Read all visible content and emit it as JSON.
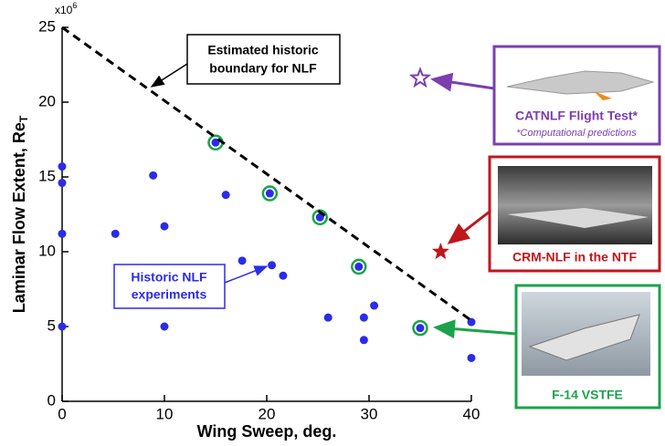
{
  "chart_data": {
    "type": "scatter",
    "xlabel": "Wing Sweep, deg.",
    "ylabel": {
      "text": "Laminar Flow Extent, Re",
      "subscript": "T"
    },
    "yscale_label": {
      "text": "x10",
      "superscript": "6"
    },
    "xlim": [
      0,
      40
    ],
    "ylim": [
      0,
      25
    ],
    "xticks": [
      0,
      10,
      20,
      30,
      40
    ],
    "yticks": [
      0,
      5,
      10,
      15,
      20,
      25
    ],
    "series": [
      {
        "marker": "dot",
        "color": "#2b2bea",
        "x": [
          0,
          0,
          0,
          0,
          5.2,
          8.9,
          10,
          10,
          16,
          17.6,
          20.5,
          21.6,
          26,
          29.5,
          29.5,
          30.5,
          40,
          40
        ],
        "values": [
          15.7,
          14.6,
          11.2,
          5,
          11.2,
          15.1,
          11.7,
          5,
          13.8,
          9.4,
          9.1,
          8.4,
          5.6,
          5.6,
          4.1,
          6.4,
          5.3,
          2.9
        ]
      },
      {
        "marker": "ringed-dot",
        "color": "#2b2bea",
        "ring_color": "#1aa34a",
        "x": [
          15,
          20.3,
          25.2,
          29,
          35
        ],
        "values": [
          17.3,
          13.9,
          12.3,
          9,
          4.9
        ]
      },
      {
        "marker": "open-star",
        "color": "#7b3fb0",
        "x": [
          35
        ],
        "values": [
          21.6
        ]
      },
      {
        "marker": "star",
        "color": "#c0161c",
        "x": [
          37
        ],
        "values": [
          10
        ]
      },
      {
        "marker": "dashed-line",
        "color": "#000000",
        "x": [
          0,
          40
        ],
        "values": [
          25,
          5.4
        ]
      }
    ]
  },
  "annotations": {
    "boundary": [
      "Estimated historic",
      "boundary for NLF"
    ],
    "historic": [
      "Historic NLF",
      "experiments"
    ],
    "catnlf": {
      "title": "CATNLF Flight Test*",
      "note": "*Computational predictions"
    },
    "crm": "CRM-NLF in the NTF",
    "f14": "F-14 VSTFE"
  }
}
